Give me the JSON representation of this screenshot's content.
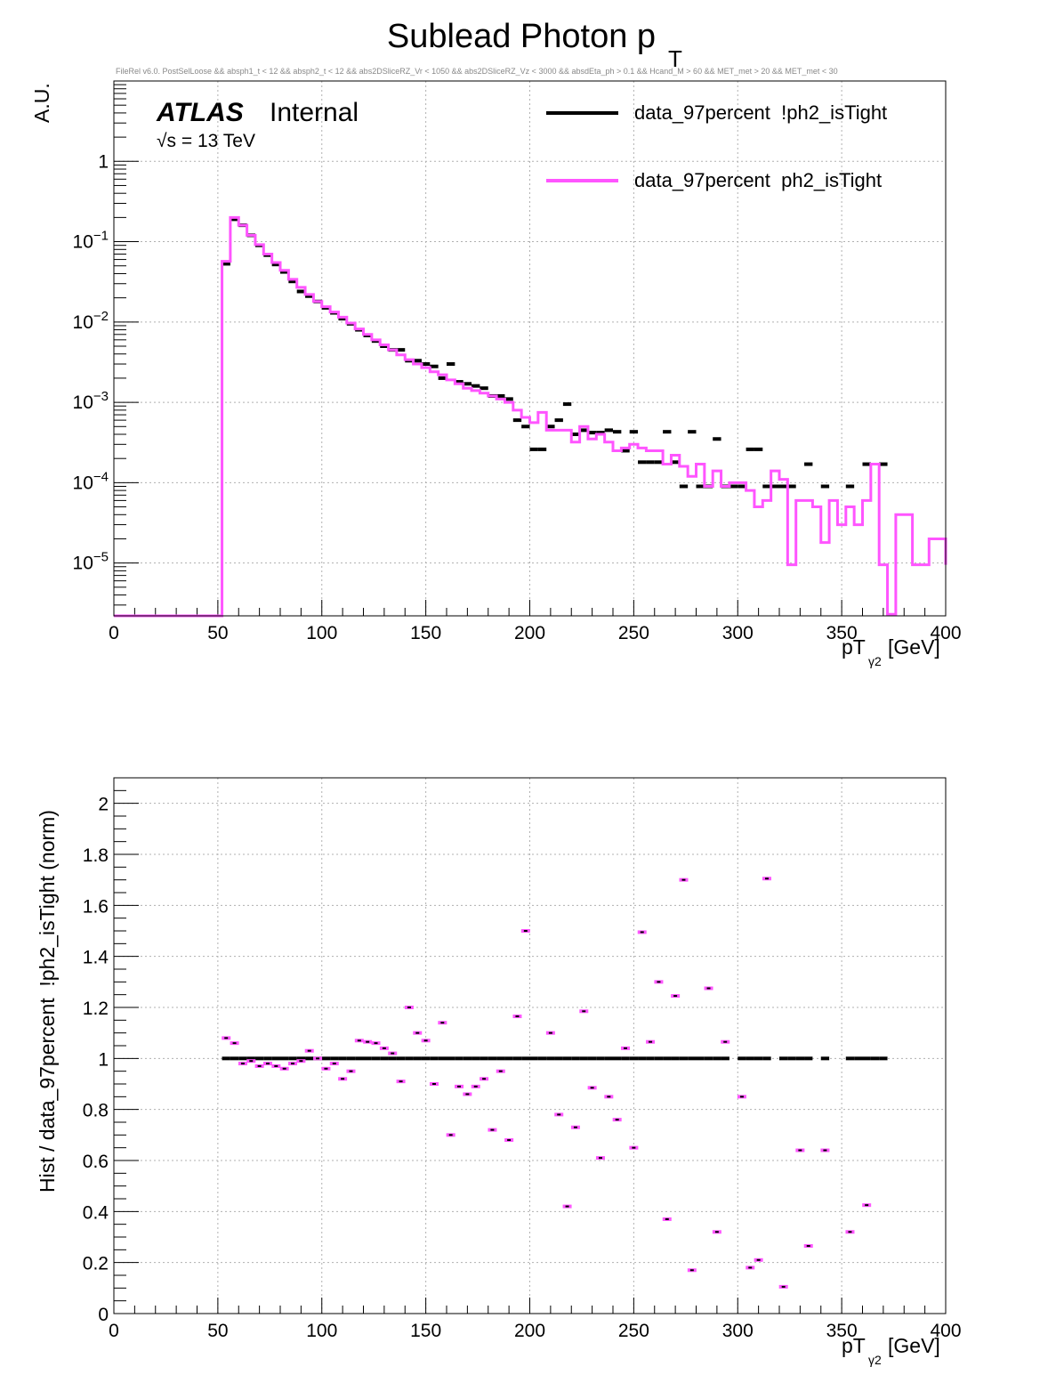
{
  "title": "Sublead Photon p",
  "title_sub": "T",
  "cuts": "FileRel v6.0. PostSelLoose &&  absph1_t < 12 && absph2_t < 12 && abs2DSliceRZ_Vr < 1050 && abs2DSliceRZ_Vz < 3000 && absdEta_ph > 0.1 && Hcand_M > 60 && MET_met > 20 && MET_met < 30",
  "atlas_label": "ATLAS",
  "atlas_status": "Internal",
  "energy": "√s = 13 TeV",
  "colors": {
    "tight": "#ff55ff",
    "not_tight": "#000000"
  },
  "chart_data": [
    {
      "type": "line",
      "subtype": "step-histogram",
      "ylabel": "A.U.",
      "xlabel_main": "pT",
      "xlabel_sub": "γ2",
      "xlabel_unit": "[GeV]",
      "xlim": [
        0,
        400
      ],
      "ylim": [
        2.2e-06,
        10
      ],
      "yscale": "log",
      "grid": true,
      "legend_position": "top-right",
      "x_ticks": [
        "0",
        "50",
        "100",
        "150",
        "200",
        "250",
        "300",
        "350",
        "400"
      ],
      "y_ticks": [
        {
          "value": 1,
          "base": "1",
          "exp": ""
        },
        {
          "value": 0.1,
          "base": "10",
          "exp": "−1"
        },
        {
          "value": 0.01,
          "base": "10",
          "exp": "−2"
        },
        {
          "value": 0.001,
          "base": "10",
          "exp": "−3"
        },
        {
          "value": 0.0001,
          "base": "10",
          "exp": "−4"
        },
        {
          "value": 1e-05,
          "base": "10",
          "exp": "−5"
        }
      ],
      "series": [
        {
          "name": "data_97percent  !ph2_isTight",
          "style": "dashes",
          "bins": [
            [
              52,
              56,
              0.053
            ],
            [
              56,
              60,
              0.19
            ],
            [
              60,
              64,
              0.16
            ],
            [
              64,
              68,
              0.12
            ],
            [
              68,
              72,
              0.09
            ],
            [
              72,
              76,
              0.068
            ],
            [
              76,
              80,
              0.052
            ],
            [
              80,
              84,
              0.042
            ],
            [
              84,
              88,
              0.032
            ],
            [
              88,
              92,
              0.024
            ],
            [
              92,
              96,
              0.021
            ],
            [
              96,
              100,
              0.018
            ],
            [
              100,
              104,
              0.015
            ],
            [
              104,
              108,
              0.013
            ],
            [
              108,
              112,
              0.011
            ],
            [
              112,
              116,
              0.0095
            ],
            [
              116,
              120,
              0.008
            ],
            [
              120,
              124,
              0.0068
            ],
            [
              124,
              128,
              0.0058
            ],
            [
              128,
              132,
              0.005
            ],
            [
              132,
              136,
              0.0045
            ],
            [
              136,
              140,
              0.0045
            ],
            [
              140,
              144,
              0.0033
            ],
            [
              144,
              148,
              0.0033
            ],
            [
              148,
              152,
              0.003
            ],
            [
              152,
              156,
              0.0028
            ],
            [
              156,
              160,
              0.002
            ],
            [
              160,
              164,
              0.003
            ],
            [
              164,
              168,
              0.0018
            ],
            [
              168,
              172,
              0.0017
            ],
            [
              172,
              176,
              0.0016
            ],
            [
              176,
              180,
              0.0015
            ],
            [
              180,
              184,
              0.0012
            ],
            [
              184,
              188,
              0.0012
            ],
            [
              188,
              192,
              0.0011
            ],
            [
              192,
              196,
              0.0006
            ],
            [
              196,
              200,
              0.0005
            ],
            [
              200,
              204,
              0.00026
            ],
            [
              204,
              208,
              0.00026
            ],
            [
              208,
              212,
              0.0005
            ],
            [
              212,
              216,
              0.0006
            ],
            [
              216,
              220,
              0.00095
            ],
            [
              220,
              224,
              0.0004
            ],
            [
              224,
              228,
              0.00045
            ],
            [
              228,
              232,
              0.00042
            ],
            [
              232,
              236,
              0.00042
            ],
            [
              236,
              240,
              0.00045
            ],
            [
              240,
              244,
              0.00043
            ],
            [
              244,
              248,
              0.00025
            ],
            [
              248,
              252,
              0.00043
            ],
            [
              252,
              256,
              0.00018
            ],
            [
              256,
              260,
              0.00018
            ],
            [
              260,
              264,
              0.00018
            ],
            [
              264,
              268,
              0.00043
            ],
            [
              268,
              272,
              0.00018
            ],
            [
              272,
              276,
              9e-05
            ],
            [
              276,
              280,
              0.00043
            ],
            [
              280,
              284,
              9e-05
            ],
            [
              284,
              288,
              9e-05
            ],
            [
              288,
              292,
              0.00035
            ],
            [
              292,
              296,
              9e-05
            ],
            [
              296,
              300,
              9e-05
            ],
            [
              300,
              304,
              9e-05
            ],
            [
              304,
              308,
              0.00026
            ],
            [
              308,
              312,
              0.00026
            ],
            [
              312,
              316,
              9e-05
            ],
            [
              316,
              320,
              9e-05
            ],
            [
              320,
              324,
              9e-05
            ],
            [
              324,
              328,
              9e-05
            ],
            [
              332,
              336,
              0.00017
            ],
            [
              340,
              344,
              9e-05
            ],
            [
              352,
              356,
              9e-05
            ],
            [
              360,
              364,
              0.00017
            ],
            [
              368,
              372,
              0.00017
            ]
          ]
        },
        {
          "name": "data_97percent  ph2_isTight",
          "style": "step",
          "edges": [
            0,
            52,
            56,
            60,
            64,
            68,
            72,
            76,
            80,
            84,
            88,
            92,
            96,
            100,
            104,
            108,
            112,
            116,
            120,
            124,
            128,
            132,
            136,
            140,
            144,
            148,
            152,
            156,
            160,
            164,
            168,
            172,
            176,
            180,
            184,
            188,
            192,
            196,
            200,
            204,
            208,
            212,
            216,
            220,
            224,
            228,
            232,
            236,
            240,
            244,
            248,
            252,
            256,
            260,
            264,
            268,
            272,
            276,
            280,
            284,
            288,
            292,
            296,
            300,
            304,
            308,
            312,
            316,
            320,
            324,
            328,
            332,
            336,
            340,
            344,
            348,
            352,
            356,
            360,
            364,
            368,
            372,
            376,
            380,
            384,
            388,
            392,
            396,
            400
          ],
          "values": [
            2.2e-06,
            0.057,
            0.2,
            0.16,
            0.12,
            0.092,
            0.07,
            0.055,
            0.044,
            0.034,
            0.027,
            0.022,
            0.018,
            0.0155,
            0.0133,
            0.0115,
            0.0097,
            0.0082,
            0.007,
            0.006,
            0.0052,
            0.0045,
            0.0039,
            0.0034,
            0.003,
            0.0027,
            0.0024,
            0.0022,
            0.0019,
            0.0017,
            0.0015,
            0.0014,
            0.0013,
            0.0012,
            0.0011,
            0.001,
            0.0008,
            0.00065,
            0.00056,
            0.00075,
            0.00045,
            0.00045,
            0.00045,
            0.00032,
            0.0005,
            0.00035,
            0.0004,
            0.00032,
            0.00025,
            0.00027,
            0.0003,
            0.00027,
            0.00025,
            0.00025,
            0.00017,
            0.00022,
            0.00016,
            0.00012,
            0.00017,
            9e-05,
            0.00014,
            9e-05,
            0.0001,
            0.0001,
            8e-05,
            5e-05,
            6e-05,
            0.00014,
            0.00011,
            9.5e-06,
            6e-05,
            6e-05,
            5e-05,
            1.8e-05,
            6e-05,
            3e-05,
            5e-05,
            3e-05,
            6e-05,
            0.00017,
            9.5e-06,
            2.3e-06,
            4e-05,
            4e-05,
            9.5e-06,
            9.5e-06,
            2e-05,
            2e-05,
            9.5e-06
          ]
        }
      ]
    },
    {
      "type": "scatter",
      "ylabel": "Hist / data_97percent  !ph2_isTight (norm)",
      "xlabel_main": "pT",
      "xlabel_sub": "γ2",
      "xlabel_unit": "[GeV]",
      "xlim": [
        0,
        400
      ],
      "ylim": [
        0,
        2.1
      ],
      "grid": true,
      "x_ticks": [
        "0",
        "50",
        "100",
        "150",
        "200",
        "250",
        "300",
        "350",
        "400"
      ],
      "y_ticks": [
        "0",
        "0.2",
        "0.4",
        "0.6",
        "0.8",
        "1",
        "1.2",
        "1.4",
        "1.6",
        "1.8",
        "2"
      ],
      "series": [
        {
          "name": "data_97percent  !ph2_isTight",
          "bins": [
            [
              52,
              56
            ],
            [
              56,
              60
            ],
            [
              60,
              64
            ],
            [
              64,
              68
            ],
            [
              68,
              72
            ],
            [
              72,
              76
            ],
            [
              76,
              80
            ],
            [
              80,
              84
            ],
            [
              84,
              88
            ],
            [
              88,
              92
            ],
            [
              92,
              96
            ],
            [
              96,
              100
            ],
            [
              100,
              104
            ],
            [
              104,
              108
            ],
            [
              108,
              112
            ],
            [
              112,
              116
            ],
            [
              116,
              120
            ],
            [
              120,
              124
            ],
            [
              124,
              128
            ],
            [
              128,
              132
            ],
            [
              132,
              136
            ],
            [
              136,
              140
            ],
            [
              140,
              144
            ],
            [
              144,
              148
            ],
            [
              148,
              152
            ],
            [
              152,
              156
            ],
            [
              156,
              160
            ],
            [
              160,
              164
            ],
            [
              164,
              168
            ],
            [
              168,
              172
            ],
            [
              172,
              176
            ],
            [
              176,
              180
            ],
            [
              180,
              184
            ],
            [
              184,
              188
            ],
            [
              188,
              192
            ],
            [
              192,
              196
            ],
            [
              196,
              200
            ],
            [
              200,
              204
            ],
            [
              204,
              208
            ],
            [
              208,
              212
            ],
            [
              212,
              216
            ],
            [
              216,
              220
            ],
            [
              220,
              224
            ],
            [
              224,
              228
            ],
            [
              228,
              232
            ],
            [
              232,
              236
            ],
            [
              236,
              240
            ],
            [
              240,
              244
            ],
            [
              244,
              248
            ],
            [
              248,
              252
            ],
            [
              252,
              256
            ],
            [
              256,
              260
            ],
            [
              260,
              264
            ],
            [
              264,
              268
            ],
            [
              268,
              272
            ],
            [
              272,
              276
            ],
            [
              276,
              280
            ],
            [
              280,
              284
            ],
            [
              284,
              288
            ],
            [
              288,
              292
            ],
            [
              292,
              296
            ],
            [
              300,
              304
            ],
            [
              304,
              308
            ],
            [
              308,
              312
            ],
            [
              312,
              316
            ],
            [
              320,
              324
            ],
            [
              324,
              328
            ],
            [
              328,
              332
            ],
            [
              332,
              336
            ],
            [
              340,
              344
            ],
            [
              352,
              356
            ],
            [
              356,
              360
            ],
            [
              360,
              364
            ],
            [
              364,
              368
            ],
            [
              368,
              372
            ]
          ],
          "value": 1.0
        },
        {
          "name": "data_97percent  ph2_isTight",
          "x": [
            54,
            58,
            62,
            66,
            70,
            74,
            78,
            82,
            86,
            90,
            94,
            98,
            102,
            106,
            110,
            114,
            118,
            122,
            126,
            130,
            134,
            138,
            142,
            146,
            150,
            154,
            158,
            162,
            166,
            170,
            174,
            178,
            182,
            186,
            190,
            194,
            198,
            210,
            214,
            218,
            222,
            226,
            230,
            234,
            238,
            242,
            246,
            250,
            254,
            258,
            262,
            266,
            270,
            274,
            278,
            286,
            290,
            294,
            302,
            306,
            310,
            314,
            322,
            330,
            334,
            342,
            354,
            362
          ],
          "y": [
            1.08,
            1.06,
            0.98,
            0.99,
            0.97,
            0.98,
            0.97,
            0.96,
            0.98,
            0.99,
            1.03,
            1.0,
            0.96,
            0.98,
            0.92,
            0.95,
            1.07,
            1.065,
            1.06,
            1.04,
            1.02,
            0.91,
            1.2,
            1.1,
            1.07,
            0.9,
            1.14,
            0.7,
            0.89,
            0.86,
            0.89,
            0.92,
            0.72,
            0.95,
            0.68,
            1.165,
            1.5,
            1.1,
            0.78,
            0.42,
            0.73,
            1.185,
            0.885,
            0.61,
            0.85,
            0.76,
            1.04,
            0.65,
            1.495,
            1.065,
            1.3,
            0.37,
            1.245,
            1.7,
            0.17,
            1.275,
            0.32,
            1.065,
            0.85,
            0.18,
            0.21,
            1.705,
            0.105,
            0.64,
            0.265,
            0.64,
            0.32,
            0.425
          ]
        }
      ]
    }
  ]
}
